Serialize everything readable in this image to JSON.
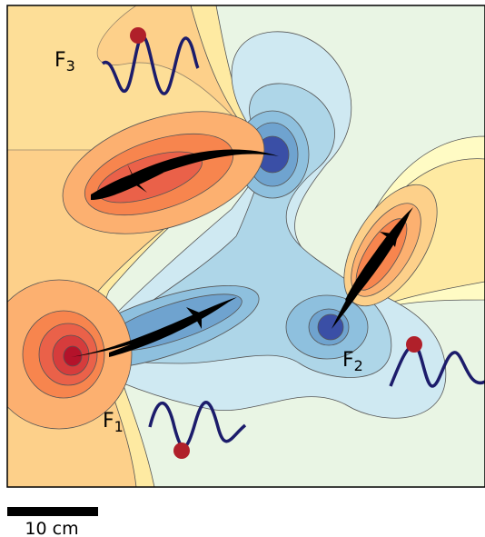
{
  "labels": [
    {
      "base": "F",
      "sub": "3"
    },
    {
      "base": "F",
      "sub": "2"
    },
    {
      "base": "F",
      "sub": "1"
    }
  ],
  "scale_bar": {
    "label": "10 cm"
  }
}
